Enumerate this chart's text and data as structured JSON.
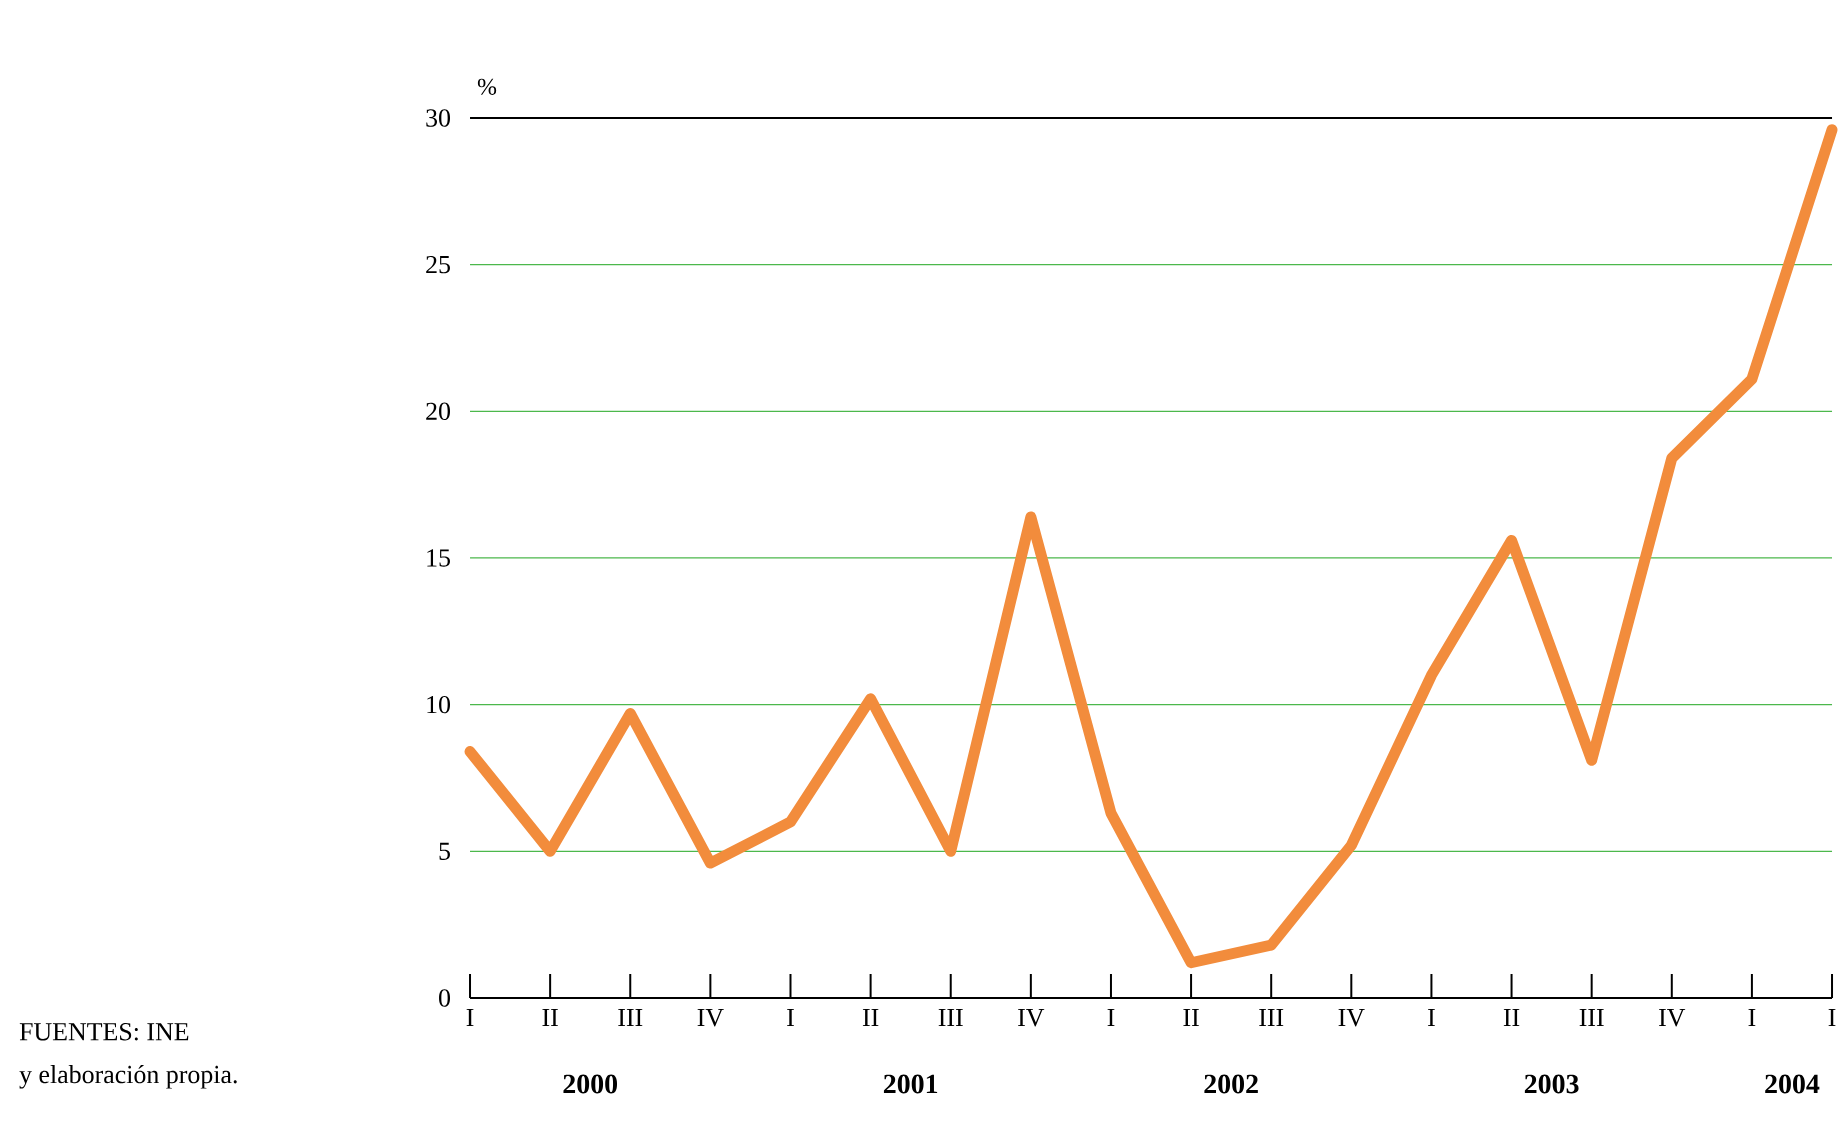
{
  "chart_data": {
    "type": "line",
    "ylabel": "%",
    "categories": [
      "I",
      "II",
      "III",
      "IV",
      "I",
      "II",
      "III",
      "IV",
      "I",
      "II",
      "III",
      "IV",
      "I",
      "II",
      "III",
      "IV",
      "I",
      "I"
    ],
    "series": [
      {
        "color": "#f28c3c",
        "values": [
          8.4,
          5.0,
          9.7,
          4.6,
          6.0,
          10.2,
          5.0,
          16.4,
          6.3,
          1.2,
          1.8,
          5.2,
          11.0,
          15.6,
          8.1,
          18.4,
          21.1,
          29.6
        ]
      }
    ],
    "ylim": [
      0,
      30
    ],
    "yticks": [
      0,
      5,
      10,
      15,
      20,
      25,
      30
    ],
    "grid": "y",
    "marker": "none",
    "line_style": "solid",
    "annotations": [
      "2000",
      "2001",
      "2002",
      "2003",
      "2004",
      "FUENTES: INE",
      "y elaboración propia."
    ]
  }
}
